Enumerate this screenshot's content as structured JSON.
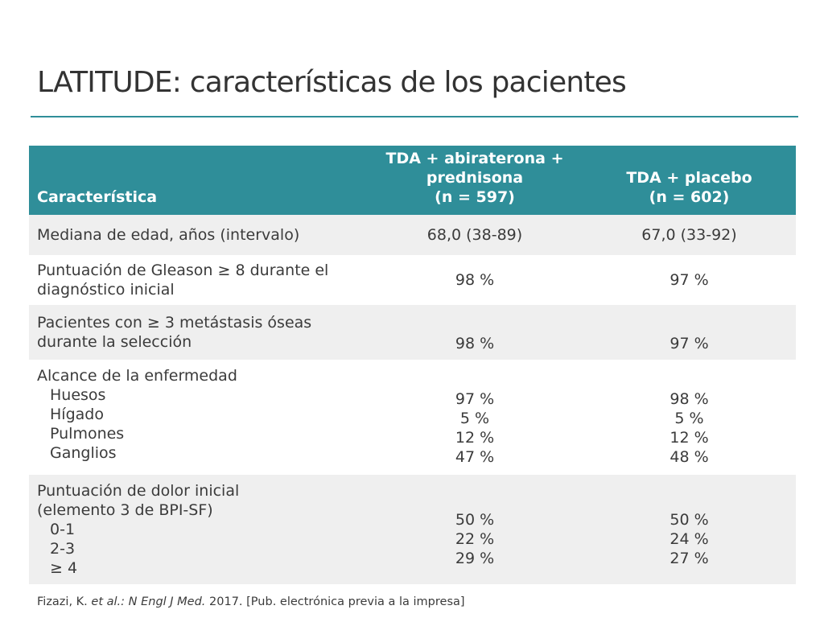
{
  "title": "LATITUDE: características de los pacientes",
  "table": {
    "headers": {
      "characteristic": "Característica",
      "group1": [
        "TDA + abiraterona +",
        "prednisona",
        "(n = 597)"
      ],
      "group2": [
        "TDA + placebo",
        "(n = 602)"
      ]
    },
    "rows": [
      {
        "label": [
          "Mediana de edad, años (intervalo)"
        ],
        "group1": [
          "68,0 (38-89)"
        ],
        "group2": [
          "67,0 (33-92)"
        ]
      },
      {
        "label": [
          "Puntuación de Gleason ≥ 8 durante el",
          "diagnóstico inicial"
        ],
        "group1": [
          "98 %"
        ],
        "group2": [
          "97 %"
        ]
      },
      {
        "label": [
          "Pacientes con ≥ 3 metástasis óseas",
          "durante la selección"
        ],
        "group1": [
          "98 %"
        ],
        "group2": [
          "97 %"
        ]
      },
      {
        "label": [
          "Alcance de la enfermedad"
        ],
        "sublabels": [
          "Huesos",
          "Hígado",
          "Pulmones",
          "Ganglios"
        ],
        "group1": [
          "97 %",
          "5 %",
          "12 %",
          "47 %"
        ],
        "group2": [
          "98 %",
          "5 %",
          "12 %",
          "48 %"
        ]
      },
      {
        "label": [
          "Puntuación de dolor inicial",
          "(elemento 3 de BPI-SF)"
        ],
        "sublabels": [
          "0-1",
          "2-3",
          "≥ 4"
        ],
        "group1": [
          "50 %",
          "22 %",
          "29 %"
        ],
        "group2": [
          "50 %",
          "24 %",
          "27 %"
        ]
      }
    ]
  },
  "footnote": {
    "author": "Fizazi, K.",
    "etal": "et al.:",
    "journal": "N Engl J Med.",
    "rest": "2017. [Pub. electrónica previa a la impresa]"
  },
  "colors": {
    "accent": "#2f8e99",
    "row_shade": "#efefef"
  }
}
